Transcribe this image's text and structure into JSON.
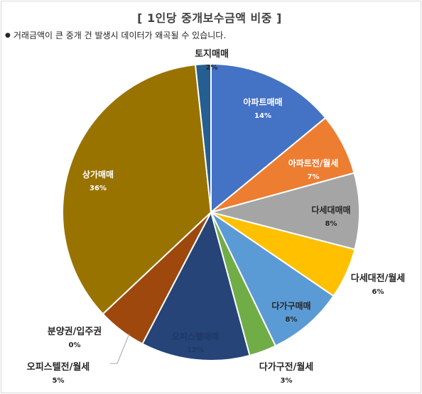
{
  "chart_data": {
    "type": "pie",
    "title": "[ 1인당 중개보수금액 비중 ]",
    "note": "거래금액이 큰 중개 건 발생시 데이터가 왜곡될 수 있습니다.",
    "slices": [
      {
        "label": "아파트매매",
        "percent_label": "14%",
        "value": 14.2,
        "color": "#4472c4"
      },
      {
        "label": "아파트전/월세",
        "percent_label": "7%",
        "value": 6.8,
        "color": "#ed7d31"
      },
      {
        "label": "다세대매매",
        "percent_label": "8%",
        "value": 8.4,
        "color": "#a5a5a5"
      },
      {
        "label": "다세대전/월세",
        "percent_label": "6%",
        "value": 5.6,
        "color": "#ffc000"
      },
      {
        "label": "다가구매매",
        "percent_label": "8%",
        "value": 8.4,
        "color": "#5b9bd5"
      },
      {
        "label": "다가구전/월세",
        "percent_label": "3%",
        "value": 3.0,
        "color": "#70ad47"
      },
      {
        "label": "오피스텔매매",
        "percent_label": "12%",
        "value": 12.0,
        "color": "#264478"
      },
      {
        "label": "오피스텔전/월세",
        "percent_label": "5%",
        "value": 5.4,
        "color": "#9e480e"
      },
      {
        "label": "분양권/입주권",
        "percent_label": "0%",
        "value": 0.0,
        "color": "#636363"
      },
      {
        "label": "상가매매",
        "percent_label": "36%",
        "value": 35.8,
        "color": "#997300"
      },
      {
        "label": "토지매매",
        "percent_label": "2%",
        "value": 1.7,
        "color": "#255e91"
      }
    ]
  }
}
